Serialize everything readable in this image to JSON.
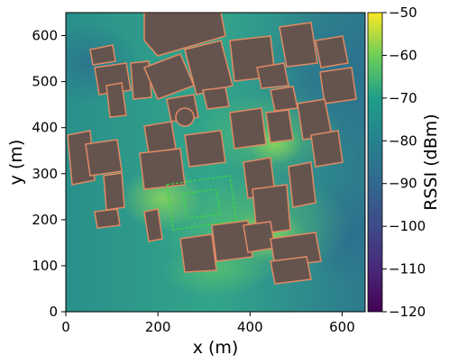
{
  "chart_data": {
    "type": "heatmap",
    "title": "",
    "xlabel": "x (m)",
    "ylabel": "y (m)",
    "xlim": [
      0,
      650
    ],
    "ylim": [
      0,
      650
    ],
    "xticks": [
      0,
      200,
      400,
      600
    ],
    "yticks": [
      0,
      100,
      200,
      300,
      400,
      500,
      600
    ],
    "colorbar": {
      "label": "RSSI (dBm)",
      "range": [
        -120,
        -50
      ],
      "ticks": [
        -120,
        -110,
        -100,
        -90,
        -80,
        -70,
        -60,
        -50
      ],
      "tick_labels": [
        "−120",
        "−110",
        "−100",
        "−90",
        "−80",
        "−70",
        "−60",
        "−50"
      ],
      "colormap": "viridis"
    },
    "buildings_color": "#65544e",
    "buildings_edge_color": "#e08a64",
    "highlighted_region_color": "#3ddc3d"
  }
}
